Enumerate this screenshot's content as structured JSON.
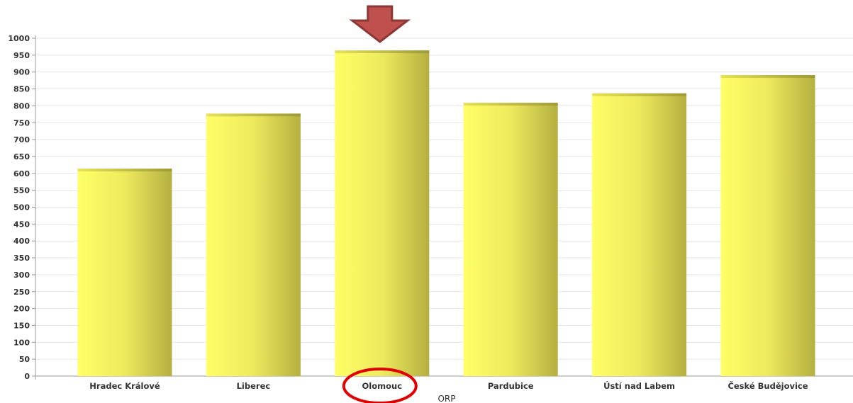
{
  "chart_data": {
    "type": "bar",
    "title": "",
    "xlabel": "ORP",
    "ylabel": "",
    "categories": [
      "Hradec Králové",
      "Liberec",
      "Olomouc",
      "Pardubice",
      "Ústí nad Labem",
      "České Budějovice"
    ],
    "values": [
      612,
      775,
      962,
      807,
      835,
      889
    ],
    "ylim": [
      0,
      1000
    ],
    "yticks": [
      "0",
      "50",
      "100",
      "150",
      "200",
      "250",
      "300",
      "350",
      "400",
      "450",
      "500",
      "550",
      "600",
      "650",
      "700",
      "750",
      "800",
      "850",
      "900",
      "950",
      "1000"
    ],
    "grid": true,
    "bar_color": "#ffff66",
    "bar_shade_color": "#b5b040"
  },
  "annotations": {
    "highlight_category": "Olomouc",
    "arrow_color": "#c0504d",
    "arrow_border_color": "#8c3836",
    "circle_color": "#e00000"
  }
}
